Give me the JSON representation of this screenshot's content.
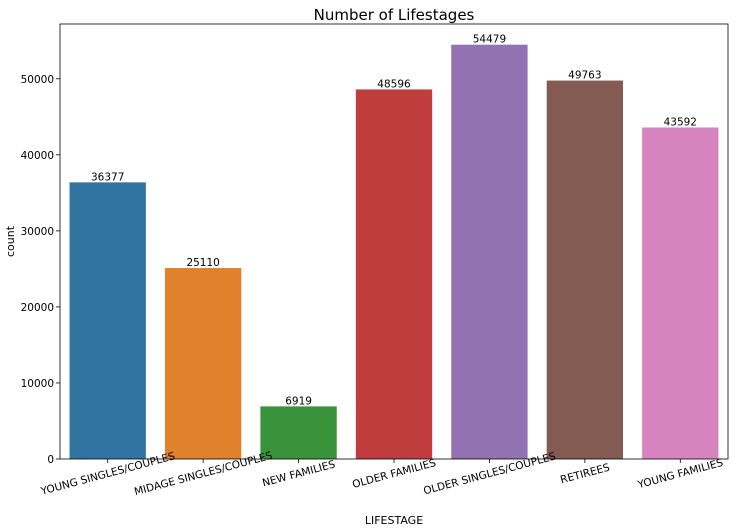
{
  "chart_data": {
    "type": "bar",
    "title": "Number of Lifestages",
    "xlabel": "LIFESTAGE",
    "ylabel": "count",
    "categories": [
      "YOUNG SINGLES/COUPLES",
      "MIDAGE SINGLES/COUPLES",
      "NEW FAMILIES",
      "OLDER FAMILIES",
      "OLDER SINGLES/COUPLES",
      "RETIREES",
      "YOUNG FAMILIES"
    ],
    "values": [
      36377,
      25110,
      6919,
      48596,
      54479,
      49763,
      43592
    ],
    "data_labels": [
      "36377",
      "25110",
      "6919",
      "48596",
      "54479",
      "49763",
      "43592"
    ],
    "colors": [
      "#3274a1",
      "#e1812c",
      "#3a923a",
      "#c03d3e",
      "#9372b2",
      "#845b53",
      "#d684bd"
    ],
    "ylim": [
      0,
      57200
    ],
    "yticks": [
      0,
      10000,
      20000,
      30000,
      40000,
      50000
    ],
    "ytick_labels": [
      "0",
      "10000",
      "20000",
      "30000",
      "40000",
      "50000"
    ],
    "grid": false,
    "legend": "none"
  }
}
